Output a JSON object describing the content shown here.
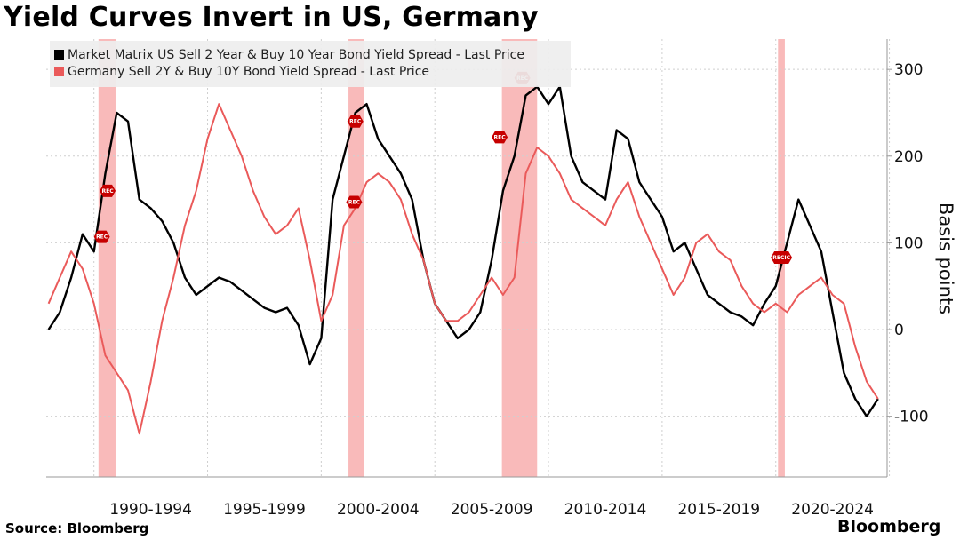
{
  "title": "Yield Curves Invert in US, Germany",
  "source": "Source: Bloomberg",
  "brand": "Bloomberg",
  "chart_data": {
    "type": "line",
    "title": "Yield Curves Invert in US, Germany",
    "xlabel": "",
    "ylabel": "Basis points",
    "xlim": [
      1987.9,
      2024.9
    ],
    "ylim": [
      -170,
      335
    ],
    "y_ticks": [
      -100,
      0,
      100,
      200,
      300
    ],
    "x_tick_labels": [
      {
        "label": "1990-1994",
        "center": 1992.5
      },
      {
        "label": "1995-1999",
        "center": 1997.5
      },
      {
        "label": "2000-2004",
        "center": 2002.5
      },
      {
        "label": "2005-2009",
        "center": 2007.5
      },
      {
        "label": "2010-2014",
        "center": 2012.5
      },
      {
        "label": "2015-2019",
        "center": 2017.5
      },
      {
        "label": "2020-2024",
        "center": 2022.5
      }
    ],
    "grid": true,
    "legend_position": "top-left",
    "recession_bands": [
      {
        "start": 1990.2,
        "end": 1990.95
      },
      {
        "start": 2001.2,
        "end": 2001.9
      },
      {
        "start": 2007.95,
        "end": 2009.5
      },
      {
        "start": 2020.1,
        "end": 2020.4
      }
    ],
    "recession_markers": [
      {
        "x": 1990.6,
        "y": 160,
        "label": "REC"
      },
      {
        "x": 1990.35,
        "y": 107,
        "label": "REC"
      },
      {
        "x": 2001.5,
        "y": 240,
        "label": "REC"
      },
      {
        "x": 2001.45,
        "y": 147,
        "label": "REC"
      },
      {
        "x": 2007.85,
        "y": 222,
        "label": "REC"
      },
      {
        "x": 2008.85,
        "y": 290,
        "label": "REC"
      },
      {
        "x": 2020.25,
        "y": 83,
        "label": "RECIC"
      }
    ],
    "series": [
      {
        "name": "Market Matrix US Sell 2 Year & Buy 10 Year Bond Yield Spread - Last Price",
        "color": "#000000",
        "x": [
          1988.0,
          1988.5,
          1989.0,
          1989.5,
          1990.0,
          1990.5,
          1991.0,
          1991.5,
          1992.0,
          1992.5,
          1993.0,
          1993.5,
          1994.0,
          1994.5,
          1995.0,
          1995.5,
          1996.0,
          1996.5,
          1997.0,
          1997.5,
          1998.0,
          1998.5,
          1999.0,
          1999.5,
          2000.0,
          2000.5,
          2001.0,
          2001.5,
          2002.0,
          2002.5,
          2003.0,
          2003.5,
          2004.0,
          2004.5,
          2005.0,
          2005.5,
          2006.0,
          2006.5,
          2007.0,
          2007.5,
          2008.0,
          2008.5,
          2009.0,
          2009.5,
          2010.0,
          2010.5,
          2011.0,
          2011.5,
          2012.0,
          2012.5,
          2013.0,
          2013.5,
          2014.0,
          2014.5,
          2015.0,
          2015.5,
          2016.0,
          2016.5,
          2017.0,
          2017.5,
          2018.0,
          2018.5,
          2019.0,
          2019.5,
          2020.0,
          2020.5,
          2021.0,
          2021.5,
          2022.0,
          2022.5,
          2023.0,
          2023.5,
          2024.0,
          2024.5
        ],
        "values": [
          0,
          20,
          60,
          110,
          90,
          180,
          250,
          240,
          150,
          140,
          125,
          100,
          60,
          40,
          50,
          60,
          55,
          45,
          35,
          25,
          20,
          25,
          5,
          -40,
          -10,
          150,
          200,
          250,
          260,
          220,
          200,
          180,
          150,
          80,
          30,
          10,
          -10,
          0,
          20,
          80,
          160,
          200,
          270,
          280,
          260,
          280,
          200,
          170,
          160,
          150,
          230,
          220,
          170,
          150,
          130,
          90,
          100,
          70,
          40,
          30,
          20,
          15,
          5,
          30,
          50,
          100,
          150,
          120,
          90,
          20,
          -50,
          -80,
          -100,
          -80
        ]
      },
      {
        "name": "Germany Sell 2Y & Buy 10Y Bond Yield Spread - Last Price",
        "color": "#ea5a5a",
        "x": [
          1988.0,
          1988.5,
          1989.0,
          1989.5,
          1990.0,
          1990.5,
          1991.0,
          1991.5,
          1992.0,
          1992.5,
          1993.0,
          1993.5,
          1994.0,
          1994.5,
          1995.0,
          1995.5,
          1996.0,
          1996.5,
          1997.0,
          1997.5,
          1998.0,
          1998.5,
          1999.0,
          1999.5,
          2000.0,
          2000.5,
          2001.0,
          2001.5,
          2002.0,
          2002.5,
          2003.0,
          2003.5,
          2004.0,
          2004.5,
          2005.0,
          2005.5,
          2006.0,
          2006.5,
          2007.0,
          2007.5,
          2008.0,
          2008.5,
          2009.0,
          2009.5,
          2010.0,
          2010.5,
          2011.0,
          2011.5,
          2012.0,
          2012.5,
          2013.0,
          2013.5,
          2014.0,
          2014.5,
          2015.0,
          2015.5,
          2016.0,
          2016.5,
          2017.0,
          2017.5,
          2018.0,
          2018.5,
          2019.0,
          2019.5,
          2020.0,
          2020.5,
          2021.0,
          2021.5,
          2022.0,
          2022.5,
          2023.0,
          2023.5,
          2024.0,
          2024.5
        ],
        "values": [
          30,
          60,
          90,
          70,
          30,
          -30,
          -50,
          -70,
          -120,
          -60,
          10,
          60,
          120,
          160,
          220,
          260,
          230,
          200,
          160,
          130,
          110,
          120,
          140,
          80,
          10,
          40,
          120,
          140,
          170,
          180,
          170,
          150,
          110,
          80,
          30,
          10,
          10,
          20,
          40,
          60,
          40,
          60,
          180,
          210,
          200,
          180,
          150,
          140,
          130,
          120,
          150,
          170,
          130,
          100,
          70,
          40,
          60,
          100,
          110,
          90,
          80,
          50,
          30,
          20,
          30,
          20,
          40,
          50,
          60,
          40,
          30,
          -20,
          -60,
          -80
        ]
      }
    ]
  }
}
